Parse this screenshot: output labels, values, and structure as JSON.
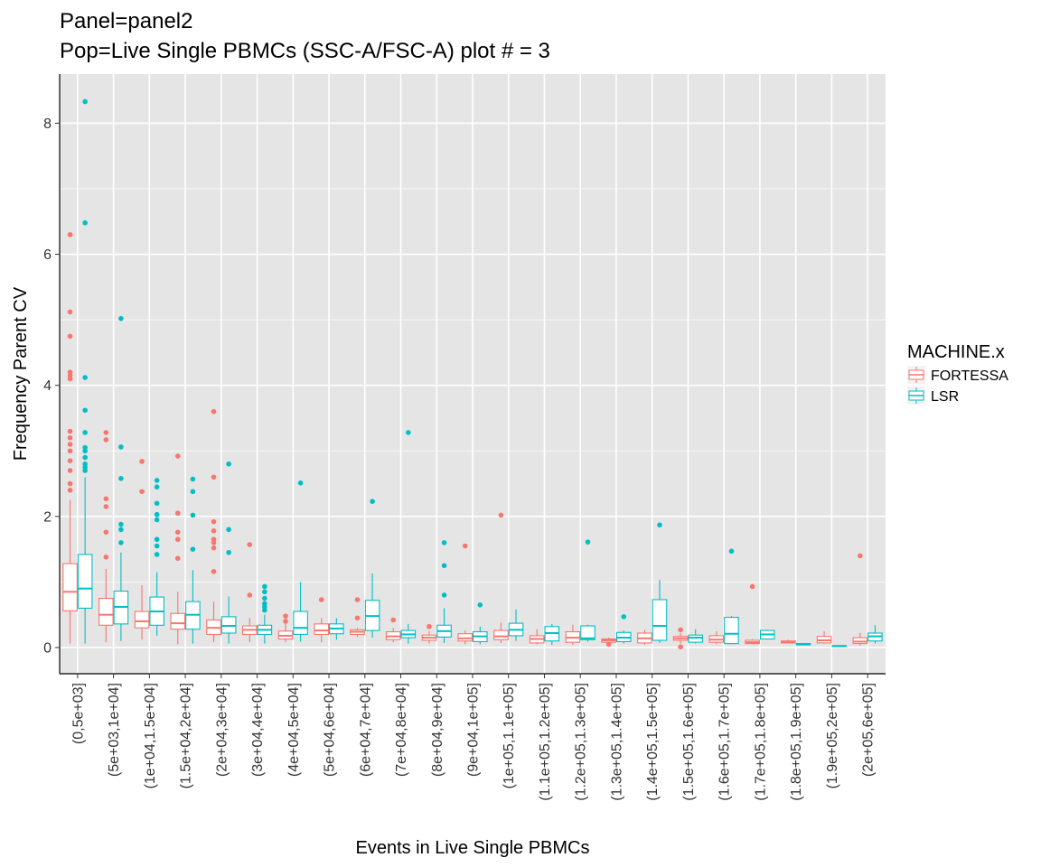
{
  "chart_data": {
    "type": "boxplot",
    "title": "Panel=panel2",
    "subtitle": "Pop=Live Single PBMCs (SSC-A/FSC-A) plot # = 3",
    "xlabel": "Events in Live Single PBMCs",
    "ylabel": "Frequency Parent CV",
    "ylim": [
      -0.4,
      8.75
    ],
    "yticks": [
      0,
      2,
      4,
      6,
      8
    ],
    "grid": true,
    "legend": {
      "title": "MACHINE.x",
      "position": "right"
    },
    "series_names": [
      "FORTESSA",
      "LSR"
    ],
    "colors": {
      "FORTESSA": "#F8766D",
      "LSR": "#00BFC4",
      "panel": "#E5E5E5",
      "grid": "#FFFFFF"
    },
    "categories": [
      "(0,5e+03]",
      "(5e+03,1e+04]",
      "(1e+04,1.5e+04]",
      "(1.5e+04,2e+04]",
      "(2e+04,3e+04]",
      "(3e+04,4e+04]",
      "(4e+04,5e+04]",
      "(5e+04,6e+04]",
      "(6e+04,7e+04]",
      "(7e+04,8e+04]",
      "(8e+04,9e+04]",
      "(9e+04,1e+05]",
      "(1e+05,1.1e+05]",
      "(1.1e+05,1.2e+05]",
      "(1.2e+05,1.3e+05]",
      "(1.3e+05,1.4e+05]",
      "(1.4e+05,1.5e+05]",
      "(1.5e+05,1.6e+05]",
      "(1.6e+05,1.7e+05]",
      "(1.7e+05,1.8e+05]",
      "(1.8e+05,1.9e+05]",
      "(1.9e+05,2e+05]",
      "(2e+05,6e+05]"
    ],
    "boxes": {
      "FORTESSA": [
        {
          "lo": 0.06,
          "q1": 0.56,
          "med": 0.85,
          "q3": 1.28,
          "hi": 2.25,
          "out": [
            2.4,
            2.5,
            2.7,
            2.85,
            3.0,
            3.1,
            3.2,
            3.3,
            4.1,
            4.15,
            4.2,
            4.75,
            5.12,
            6.3
          ]
        },
        {
          "lo": 0.08,
          "q1": 0.34,
          "med": 0.5,
          "q3": 0.75,
          "hi": 1.2,
          "out": [
            1.38,
            1.76,
            2.15,
            2.27,
            3.17,
            3.28
          ]
        },
        {
          "lo": 0.12,
          "q1": 0.3,
          "med": 0.4,
          "q3": 0.55,
          "hi": 0.95,
          "out": [
            2.38,
            2.84
          ]
        },
        {
          "lo": 0.05,
          "q1": 0.28,
          "med": 0.37,
          "q3": 0.52,
          "hi": 0.85,
          "out": [
            1.36,
            1.65,
            1.76,
            2.05,
            2.92
          ]
        },
        {
          "lo": 0.08,
          "q1": 0.2,
          "med": 0.3,
          "q3": 0.42,
          "hi": 0.7,
          "out": [
            1.16,
            1.52,
            1.6,
            1.65,
            1.78,
            1.92,
            2.6,
            3.6
          ]
        },
        {
          "lo": 0.08,
          "q1": 0.2,
          "med": 0.27,
          "q3": 0.33,
          "hi": 0.45,
          "out": [
            0.8,
            1.57
          ]
        },
        {
          "lo": 0.08,
          "q1": 0.13,
          "med": 0.18,
          "q3": 0.25,
          "hi": 0.37,
          "out": [
            0.4,
            0.48
          ]
        },
        {
          "lo": 0.08,
          "q1": 0.2,
          "med": 0.26,
          "q3": 0.36,
          "hi": 0.45,
          "out": [
            0.73
          ]
        },
        {
          "lo": 0.16,
          "q1": 0.2,
          "med": 0.24,
          "q3": 0.27,
          "hi": 0.3,
          "out": [
            0.45,
            0.73
          ]
        },
        {
          "lo": 0.08,
          "q1": 0.12,
          "med": 0.17,
          "q3": 0.24,
          "hi": 0.3,
          "out": [
            0.42
          ]
        },
        {
          "lo": 0.06,
          "q1": 0.11,
          "med": 0.15,
          "q3": 0.19,
          "hi": 0.25,
          "out": [
            0.32
          ]
        },
        {
          "lo": 0.05,
          "q1": 0.1,
          "med": 0.14,
          "q3": 0.21,
          "hi": 0.26,
          "out": [
            1.55
          ]
        },
        {
          "lo": 0.07,
          "q1": 0.12,
          "med": 0.17,
          "q3": 0.26,
          "hi": 0.38,
          "out": [
            2.02
          ]
        },
        {
          "lo": 0.05,
          "q1": 0.07,
          "med": 0.13,
          "q3": 0.18,
          "hi": 0.28,
          "out": []
        },
        {
          "lo": 0.04,
          "q1": 0.08,
          "med": 0.15,
          "q3": 0.24,
          "hi": 0.35,
          "out": []
        },
        {
          "lo": 0.06,
          "q1": 0.08,
          "med": 0.11,
          "q3": 0.13,
          "hi": 0.15,
          "out": [
            0.05
          ]
        },
        {
          "lo": 0.04,
          "q1": 0.07,
          "med": 0.14,
          "q3": 0.22,
          "hi": 0.27,
          "out": []
        },
        {
          "lo": 0.06,
          "q1": 0.11,
          "med": 0.14,
          "q3": 0.17,
          "hi": 0.22,
          "out": [
            0.01,
            0.27
          ]
        },
        {
          "lo": 0.05,
          "q1": 0.08,
          "med": 0.12,
          "q3": 0.18,
          "hi": 0.25,
          "out": []
        },
        {
          "lo": 0.05,
          "q1": 0.06,
          "med": 0.08,
          "q3": 0.11,
          "hi": 0.13,
          "out": [
            0.93
          ]
        },
        {
          "lo": 0.07,
          "q1": 0.07,
          "med": 0.08,
          "q3": 0.1,
          "hi": 0.12,
          "out": []
        },
        {
          "lo": 0.06,
          "q1": 0.07,
          "med": 0.11,
          "q3": 0.17,
          "hi": 0.25,
          "out": []
        },
        {
          "lo": 0.03,
          "q1": 0.06,
          "med": 0.09,
          "q3": 0.15,
          "hi": 0.22,
          "out": [
            1.4
          ]
        }
      ],
      "LSR": [
        {
          "lo": 0.06,
          "q1": 0.6,
          "med": 0.9,
          "q3": 1.42,
          "hi": 2.6,
          "out": [
            2.7,
            2.75,
            2.8,
            2.9,
            3.0,
            3.05,
            3.28,
            3.62,
            4.12,
            6.48,
            8.33
          ]
        },
        {
          "lo": 0.1,
          "q1": 0.36,
          "med": 0.62,
          "q3": 0.86,
          "hi": 1.45,
          "out": [
            1.6,
            1.8,
            1.88,
            2.58,
            3.06,
            5.02
          ]
        },
        {
          "lo": 0.18,
          "q1": 0.34,
          "med": 0.55,
          "q3": 0.77,
          "hi": 1.15,
          "out": [
            1.42,
            1.55,
            1.65,
            1.95,
            2.03,
            2.2,
            2.45,
            2.55
          ]
        },
        {
          "lo": 0.06,
          "q1": 0.28,
          "med": 0.5,
          "q3": 0.7,
          "hi": 1.18,
          "out": [
            1.5,
            2.02,
            2.38,
            2.57
          ]
        },
        {
          "lo": 0.06,
          "q1": 0.22,
          "med": 0.33,
          "q3": 0.47,
          "hi": 0.78,
          "out": [
            1.45,
            1.8,
            2.8
          ]
        },
        {
          "lo": 0.06,
          "q1": 0.2,
          "med": 0.27,
          "q3": 0.34,
          "hi": 0.5,
          "out": [
            0.57,
            0.62,
            0.67,
            0.75,
            0.85,
            0.93
          ]
        },
        {
          "lo": 0.09,
          "q1": 0.2,
          "med": 0.3,
          "q3": 0.55,
          "hi": 1.0,
          "out": [
            2.51
          ]
        },
        {
          "lo": 0.12,
          "q1": 0.21,
          "med": 0.29,
          "q3": 0.36,
          "hi": 0.45,
          "out": []
        },
        {
          "lo": 0.15,
          "q1": 0.26,
          "med": 0.48,
          "q3": 0.72,
          "hi": 1.13,
          "out": [
            2.23
          ]
        },
        {
          "lo": 0.06,
          "q1": 0.15,
          "med": 0.2,
          "q3": 0.26,
          "hi": 0.36,
          "out": [
            3.28
          ]
        },
        {
          "lo": 0.07,
          "q1": 0.16,
          "med": 0.25,
          "q3": 0.34,
          "hi": 0.6,
          "out": [
            0.8,
            1.25,
            1.6
          ]
        },
        {
          "lo": 0.05,
          "q1": 0.09,
          "med": 0.17,
          "q3": 0.24,
          "hi": 0.32,
          "out": [
            0.65
          ]
        },
        {
          "lo": 0.1,
          "q1": 0.18,
          "med": 0.27,
          "q3": 0.37,
          "hi": 0.58,
          "out": []
        },
        {
          "lo": 0.04,
          "q1": 0.1,
          "med": 0.22,
          "q3": 0.32,
          "hi": 0.36,
          "out": []
        },
        {
          "lo": 0.09,
          "q1": 0.12,
          "med": 0.14,
          "q3": 0.33,
          "hi": 0.35,
          "out": [
            1.61
          ]
        },
        {
          "lo": 0.06,
          "q1": 0.09,
          "med": 0.15,
          "q3": 0.23,
          "hi": 0.26,
          "out": [
            0.47
          ]
        },
        {
          "lo": 0.07,
          "q1": 0.11,
          "med": 0.33,
          "q3": 0.73,
          "hi": 1.03,
          "out": [
            1.87
          ]
        },
        {
          "lo": 0.06,
          "q1": 0.08,
          "med": 0.15,
          "q3": 0.19,
          "hi": 0.28,
          "out": []
        },
        {
          "lo": 0.06,
          "q1": 0.06,
          "med": 0.21,
          "q3": 0.46,
          "hi": 0.48,
          "out": [
            1.47
          ]
        },
        {
          "lo": 0.13,
          "q1": 0.13,
          "med": 0.2,
          "q3": 0.26,
          "hi": 0.27,
          "out": []
        },
        {
          "lo": 0.04,
          "q1": 0.04,
          "med": 0.05,
          "q3": 0.06,
          "hi": 0.07,
          "out": []
        },
        {
          "lo": 0.02,
          "q1": 0.02,
          "med": 0.02,
          "q3": 0.03,
          "hi": 0.03,
          "out": []
        },
        {
          "lo": 0.06,
          "q1": 0.1,
          "med": 0.17,
          "q3": 0.22,
          "hi": 0.34,
          "out": []
        }
      ]
    }
  }
}
